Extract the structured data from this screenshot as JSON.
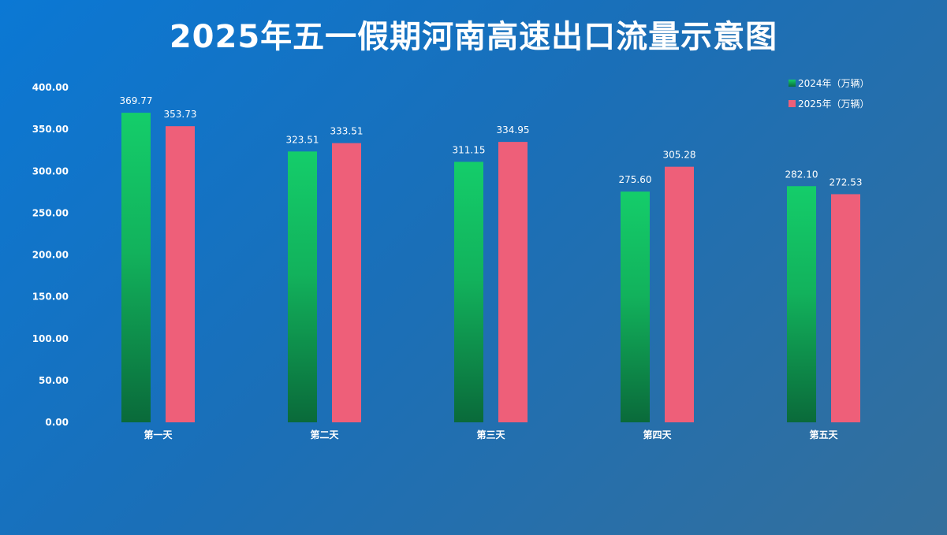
{
  "chart_data": {
    "type": "bar",
    "title": "2025年五一假期河南高速出口流量示意图",
    "categories": [
      "第一天",
      "第二天",
      "第三天",
      "第四天",
      "第五天"
    ],
    "series": [
      {
        "name": "2024年（万辆）",
        "values": [
          369.77,
          323.51,
          311.15,
          275.6,
          282.1
        ],
        "color_top": "#14cd6a",
        "color_bottom": "#0a6a3a"
      },
      {
        "name": "2025年（万辆）",
        "values": [
          353.73,
          333.51,
          334.95,
          305.28,
          272.53
        ],
        "color": "#ee5f79"
      }
    ],
    "ylim": [
      0,
      400
    ],
    "yticks": [
      "0.00",
      "50.00",
      "100.00",
      "150.00",
      "200.00",
      "250.00",
      "300.00",
      "350.00",
      "400.00"
    ],
    "grid": false,
    "legend_position": "top-right",
    "data_labels": [
      [
        "369.77",
        "323.51",
        "311.15",
        "275.60",
        "282.10"
      ],
      [
        "353.73",
        "333.51",
        "334.95",
        "305.28",
        "272.53"
      ]
    ]
  }
}
